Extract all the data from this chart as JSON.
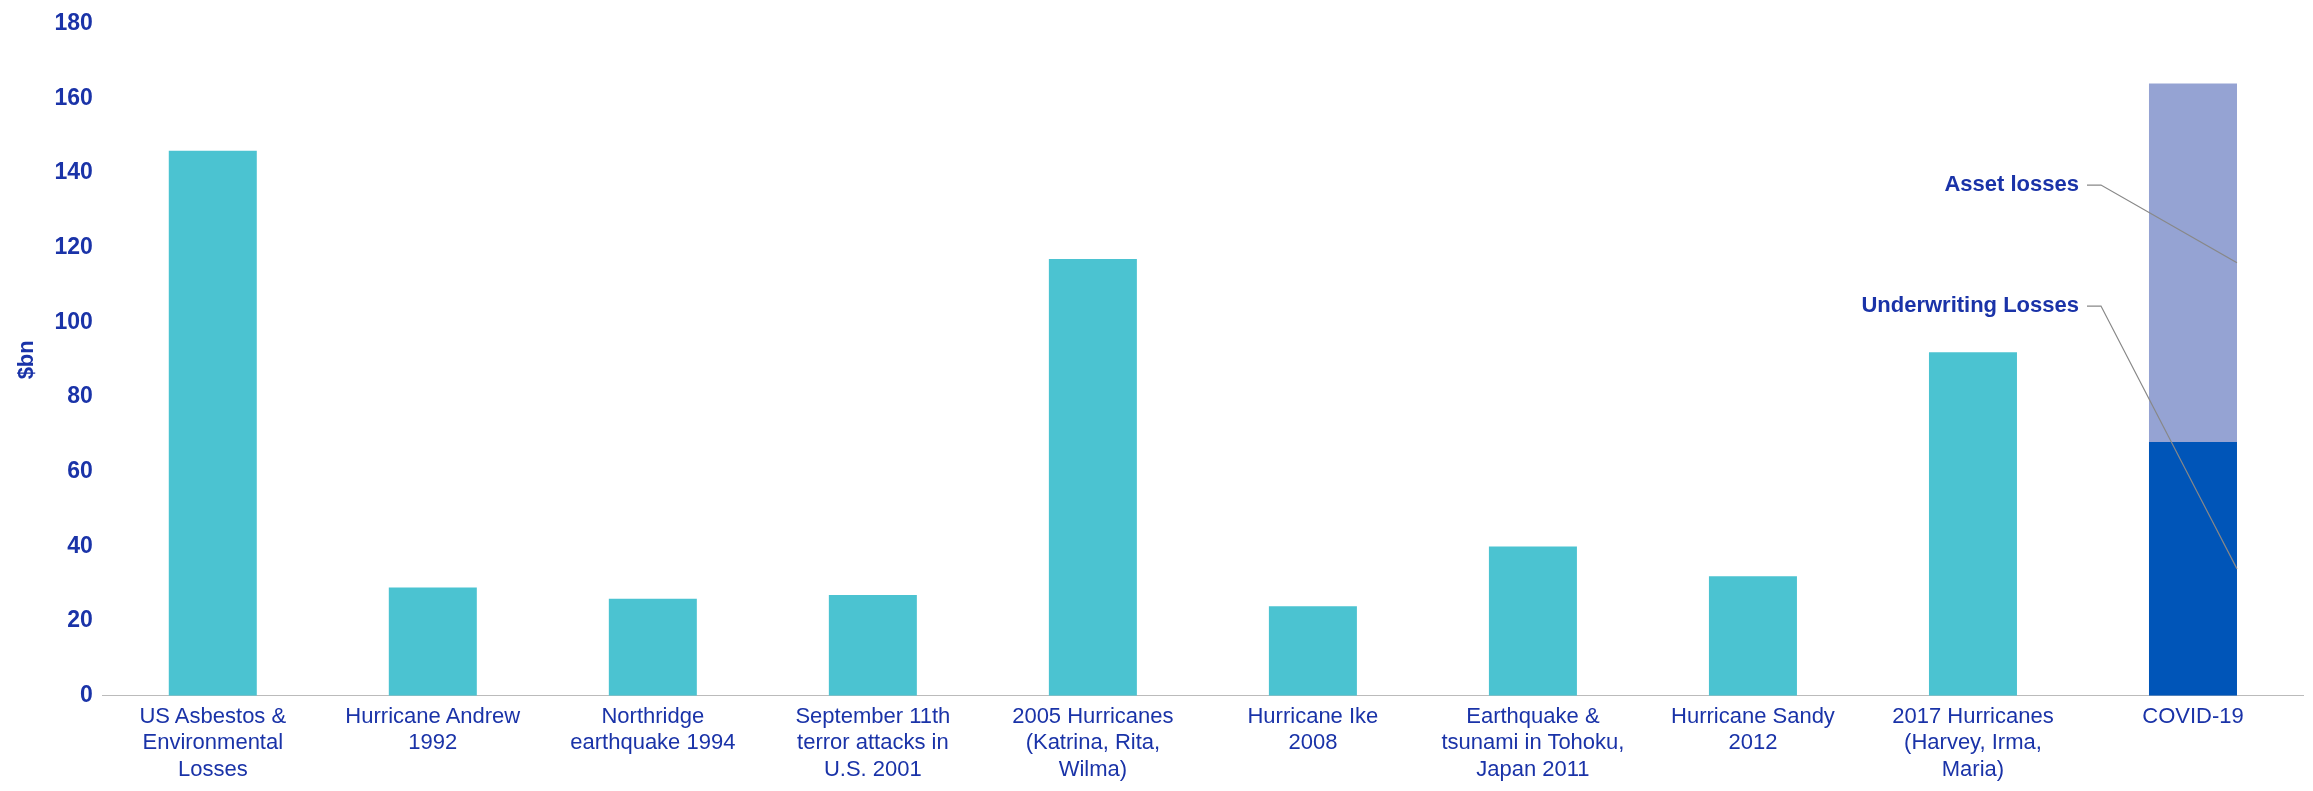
{
  "chart_data": {
    "type": "bar",
    "ylabel": "$bn",
    "categories": [
      "US Asbestos & Environmental Losses",
      "Hurricane Andrew 1992",
      "Northridge earthquake 1994",
      "September 11th terror attacks in U.S. 2001",
      "2005 Hurricanes (Katrina, Rita, Wilma)",
      "Hurricane Ike 2008",
      "Earthquake & tsunami in Tohoku, Japan 2011",
      "Hurricane Sandy 2012",
      "2017 Hurricanes (Harvey, Irma, Maria)",
      "COVID-19"
    ],
    "series": [
      {
        "color": "#4bc3d1",
        "values": [
          146,
          29,
          26,
          27,
          117,
          24,
          40,
          32,
          92,
          null
        ]
      },
      {
        "name": "Underwriting Losses",
        "color": "#0055b8",
        "values": [
          null,
          null,
          null,
          null,
          null,
          null,
          null,
          null,
          null,
          68
        ]
      },
      {
        "name": "Asset losses",
        "color": "#95a3d3",
        "values": [
          null,
          null,
          null,
          null,
          null,
          null,
          null,
          null,
          null,
          96
        ]
      }
    ],
    "stacked": true,
    "ylim": [
      0,
      180
    ],
    "yticks": [
      0,
      20,
      40,
      60,
      80,
      100,
      120,
      140,
      160,
      180
    ],
    "grid": false,
    "legend": false
  }
}
